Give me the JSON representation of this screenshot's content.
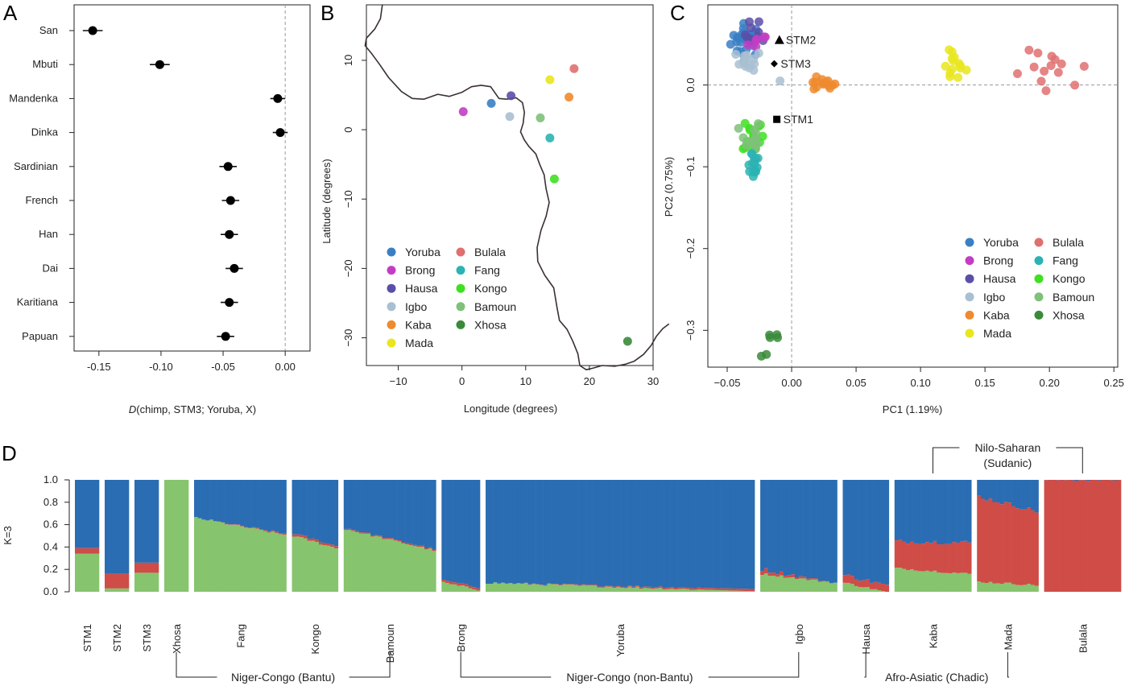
{
  "panel_labels": [
    "A",
    "B",
    "C",
    "D"
  ],
  "colors": {
    "Yoruba": "#3a7fc4",
    "Brong": "#c43cc4",
    "Hausa": "#5a4fa8",
    "Igbo": "#a9bfd2",
    "Kaba": "#ef8a2e",
    "Mada": "#e9e61e",
    "Bulala": "#e07070",
    "Fang": "#2bb3b3",
    "Kongo": "#3ee021",
    "Bamoun": "#7fc07a",
    "Xhosa": "#3a8a3a",
    "k_blue": "#2a6db3",
    "k_red": "#cf4c47",
    "k_green": "#86c46e"
  },
  "chart_data": [
    {
      "id": "A",
      "type": "scatter",
      "subtype": "dot-with-error-bars",
      "xlabel_italic": "D",
      "xlabel": "(chimp, STM3; Yoruba, X)",
      "xlim": [
        -0.17,
        0.02
      ],
      "xticks": [
        "-0.15",
        "-0.10",
        "-0.05",
        "0.00"
      ],
      "xtick_values": [
        -0.15,
        -0.1,
        -0.05,
        0.0
      ],
      "reference_line": 0.0,
      "categories": [
        "San",
        "Mbuti",
        "Mandenka",
        "Dinka",
        "Sardinian",
        "French",
        "Han",
        "Dai",
        "Karitiana",
        "Papuan"
      ],
      "values": [
        -0.155,
        -0.101,
        -0.006,
        -0.004,
        -0.046,
        -0.044,
        -0.045,
        -0.041,
        -0.045,
        -0.048
      ],
      "ci_low": [
        -0.163,
        -0.109,
        -0.012,
        -0.01,
        -0.053,
        -0.051,
        -0.052,
        -0.048,
        -0.052,
        -0.055
      ],
      "ci_high": [
        -0.147,
        -0.093,
        0.0,
        0.002,
        -0.039,
        -0.037,
        -0.038,
        -0.034,
        -0.038,
        -0.041
      ]
    },
    {
      "id": "B",
      "type": "scatter",
      "subtype": "map",
      "xlabel": "Longitude (degrees)",
      "ylabel": "Latitude (degrees)",
      "xlim": [
        -15,
        30
      ],
      "ylim": [
        -34,
        18
      ],
      "xticks": [
        "−10",
        "0",
        "10",
        "20",
        "30"
      ],
      "xtick_values": [
        -10,
        0,
        10,
        20,
        30
      ],
      "yticks": [
        "10",
        "0",
        "−10",
        "−20",
        "−30"
      ],
      "ytick_values": [
        10,
        0,
        -10,
        -20,
        -30
      ],
      "points": [
        {
          "name": "Brong",
          "x": 0.2,
          "y": 2.6
        },
        {
          "name": "Yoruba",
          "x": 4.6,
          "y": 3.8
        },
        {
          "name": "Hausa",
          "x": 7.7,
          "y": 4.9
        },
        {
          "name": "Igbo",
          "x": 7.5,
          "y": 1.9
        },
        {
          "name": "Bamoun",
          "x": 12.3,
          "y": 1.7
        },
        {
          "name": "Fang",
          "x": 13.8,
          "y": -1.2
        },
        {
          "name": "Mada",
          "x": 13.8,
          "y": 7.2
        },
        {
          "name": "Kaba",
          "x": 16.8,
          "y": 4.7
        },
        {
          "name": "Bulala",
          "x": 17.6,
          "y": 8.8
        },
        {
          "name": "Kongo",
          "x": 14.5,
          "y": -7.1
        },
        {
          "name": "Xhosa",
          "x": 26.0,
          "y": -30.5
        }
      ],
      "legend": [
        "Yoruba",
        "Brong",
        "Hausa",
        "Igbo",
        "Kaba",
        "Mada",
        "Bulala",
        "Fang",
        "Kongo",
        "Bamoun",
        "Xhosa"
      ],
      "legend_position": "bottom-left"
    },
    {
      "id": "C",
      "type": "scatter",
      "subtype": "pca",
      "xlabel": "PC1 (1.19%)",
      "ylabel": "PC2 (0.75%)",
      "xlim": [
        -0.065,
        0.253
      ],
      "ylim": [
        -0.345,
        0.098
      ],
      "xticks": [
        "−0.05",
        "0.00",
        "0.05",
        "0.10",
        "0.15",
        "0.20",
        "0.25"
      ],
      "xtick_values": [
        -0.05,
        0.0,
        0.05,
        0.1,
        0.15,
        0.2,
        0.25
      ],
      "yticks": [
        "0.0",
        "−0.1",
        "−0.2",
        "−0.3"
      ],
      "ytick_values": [
        0.0,
        -0.1,
        -0.2,
        -0.3
      ],
      "reference_lines": {
        "x": 0.0,
        "y": 0.0
      },
      "clusters": [
        {
          "name": "Yoruba",
          "cx": -0.035,
          "cy": 0.055,
          "sx": 0.006,
          "sy": 0.01,
          "n": 30
        },
        {
          "name": "Hausa",
          "cx": -0.028,
          "cy": 0.062,
          "sx": 0.004,
          "sy": 0.01,
          "n": 10
        },
        {
          "name": "Brong",
          "cx": -0.027,
          "cy": 0.05,
          "sx": 0.004,
          "sy": 0.006,
          "n": 6
        },
        {
          "name": "Igbo",
          "cx": -0.033,
          "cy": 0.03,
          "sx": 0.005,
          "sy": 0.006,
          "n": 14
        },
        {
          "name": "Kaba",
          "cx": 0.023,
          "cy": 0.0,
          "sx": 0.006,
          "sy": 0.004,
          "n": 14
        },
        {
          "name": "Mada",
          "cx": 0.125,
          "cy": 0.025,
          "sx": 0.005,
          "sy": 0.012,
          "n": 14
        },
        {
          "name": "Bulala",
          "cx": 0.203,
          "cy": 0.01,
          "sx": 0.016,
          "sy": 0.015,
          "n": 14
        },
        {
          "name": "Kongo",
          "cx": -0.03,
          "cy": -0.06,
          "sx": 0.004,
          "sy": 0.012,
          "n": 14
        },
        {
          "name": "Bamoun",
          "cx": -0.032,
          "cy": -0.068,
          "sx": 0.004,
          "sy": 0.014,
          "n": 12
        },
        {
          "name": "Fang",
          "cx": -0.03,
          "cy": -0.095,
          "sx": 0.003,
          "sy": 0.01,
          "n": 16
        },
        {
          "name": "Xhosa",
          "cx": -0.018,
          "cy": -0.312,
          "sx": 0.006,
          "sy": 0.016,
          "n": 6
        }
      ],
      "extra_points": [
        {
          "name": "Igbo",
          "x": -0.009,
          "y": 0.005
        }
      ],
      "annotations": [
        {
          "label": "STM2",
          "marker": "triangle",
          "x": -0.0095,
          "y": 0.055
        },
        {
          "label": "STM3",
          "marker": "diamond",
          "x": -0.0135,
          "y": 0.026
        },
        {
          "label": "STM1",
          "marker": "square",
          "x": -0.0115,
          "y": -0.042
        }
      ],
      "legend": [
        "Yoruba",
        "Brong",
        "Hausa",
        "Igbo",
        "Kaba",
        "Mada",
        "Bulala",
        "Fang",
        "Kongo",
        "Bamoun",
        "Xhosa"
      ],
      "legend_position": "bottom-right"
    },
    {
      "id": "D",
      "type": "bar",
      "subtype": "stacked-admixture",
      "ylabel": "K=3",
      "ylim": [
        0,
        1
      ],
      "yticks": [
        "0.0",
        "0.2",
        "0.4",
        "0.6",
        "0.8",
        "1.0"
      ],
      "ytick_values": [
        0,
        0.2,
        0.4,
        0.6,
        0.8,
        1.0
      ],
      "component_order": [
        "green",
        "red",
        "blue"
      ],
      "groups": [
        {
          "name": "STM1",
          "n": 1,
          "green": [
            0.34,
            0.34
          ],
          "red": [
            0.05,
            0.05
          ]
        },
        {
          "name": "STM2",
          "n": 1,
          "green": [
            0.03,
            0.03
          ],
          "red": [
            0.13,
            0.13
          ]
        },
        {
          "name": "STM3",
          "n": 1,
          "green": [
            0.17,
            0.17
          ],
          "red": [
            0.09,
            0.09
          ]
        },
        {
          "name": "Xhosa",
          "n": 1,
          "green": [
            1.0,
            1.0
          ],
          "red": [
            0.0,
            0.0
          ]
        },
        {
          "name": "Fang",
          "n": 24,
          "green": [
            0.66,
            0.51
          ],
          "red": [
            0.0,
            0.01
          ]
        },
        {
          "name": "Kongo",
          "n": 12,
          "green": [
            0.5,
            0.39
          ],
          "red": [
            0.02,
            0.02
          ]
        },
        {
          "name": "Bamoun",
          "n": 24,
          "green": [
            0.56,
            0.37
          ],
          "red": [
            0.01,
            0.01
          ]
        },
        {
          "name": "Brong",
          "n": 10,
          "green": [
            0.08,
            0.02
          ],
          "red": [
            0.02,
            0.02
          ]
        },
        {
          "name": "Yoruba",
          "n": 70,
          "green": [
            0.08,
            0.005
          ],
          "red": [
            0.0,
            0.02
          ]
        },
        {
          "name": "Igbo",
          "n": 20,
          "green": [
            0.16,
            0.08
          ],
          "red": [
            0.04,
            0.0
          ]
        },
        {
          "name": "Hausa",
          "n": 12,
          "green": [
            0.08,
            0.0
          ],
          "red": [
            0.07,
            0.06
          ]
        },
        {
          "name": "Kaba",
          "n": 20,
          "green": [
            0.21,
            0.16
          ],
          "red": [
            0.24,
            0.28
          ]
        },
        {
          "name": "Mada",
          "n": 16,
          "green": [
            0.09,
            0.06
          ],
          "red": [
            0.76,
            0.66
          ]
        },
        {
          "name": "Bulala",
          "n": 20,
          "green": [
            0.0,
            0.0
          ],
          "red": [
            1.0,
            1.0
          ]
        }
      ],
      "bracket_labels": [
        {
          "label": "Nilo-Saharan",
          "label2": "(Sudanic)",
          "position": "top",
          "from": "Kaba",
          "to": "Bulala"
        },
        {
          "label": "Niger-Congo (Bantu)",
          "position": "bottom",
          "from": "Xhosa",
          "to": "Bamoun"
        },
        {
          "label": "Niger-Congo (non-Bantu)",
          "position": "bottom",
          "from": "Brong",
          "to": "Igbo"
        },
        {
          "label": "Afro-Asiatic (Chadic)",
          "position": "bottom",
          "from": "Hausa",
          "to": "Mada"
        }
      ]
    }
  ]
}
